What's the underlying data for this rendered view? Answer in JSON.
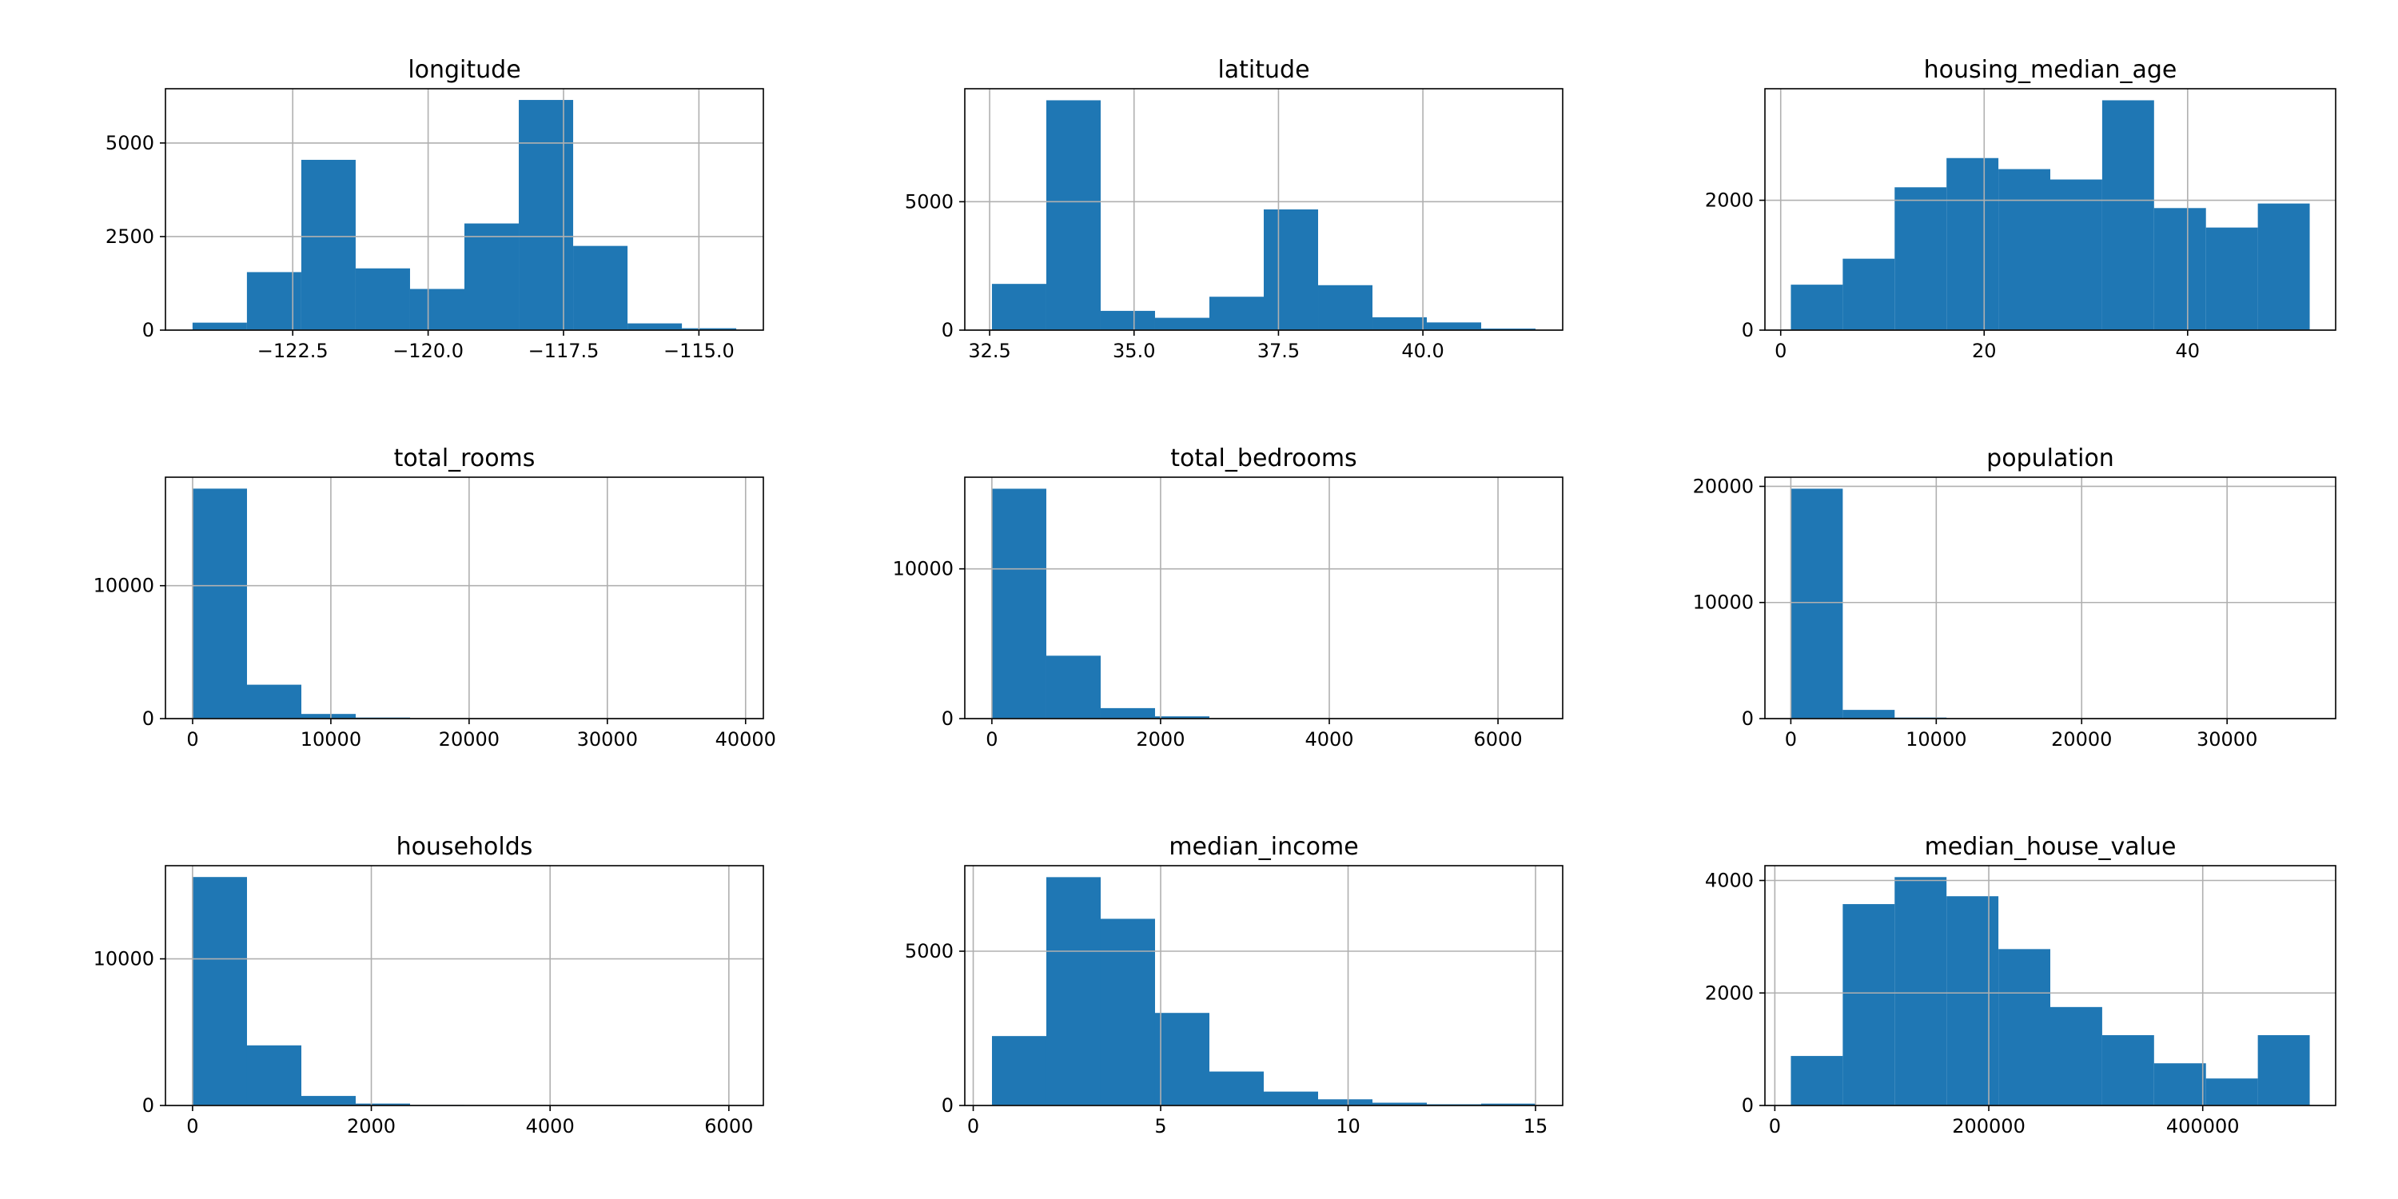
{
  "chart_data": [
    {
      "type": "histogram",
      "title": "longitude",
      "bins": [
        -124.35,
        -123.346,
        -122.342,
        -121.338,
        -120.334,
        -119.33,
        -118.326,
        -117.322,
        -116.318,
        -115.314,
        -114.31
      ],
      "values": [
        200,
        1550,
        4550,
        1650,
        1100,
        2850,
        6150,
        2250,
        180,
        50
      ],
      "color": "#1f77b4",
      "xlim": [
        -124.85,
        -113.81
      ],
      "ylim": [
        0,
        6450
      ],
      "xticks": [
        {
          "value": -122.5,
          "label": "−122.5"
        },
        {
          "value": -120,
          "label": "−120.0"
        },
        {
          "value": -117.5,
          "label": "−117.5"
        },
        {
          "value": -115,
          "label": "−115.0"
        }
      ],
      "yticks": [
        0,
        2500,
        5000
      ],
      "grid": true
    },
    {
      "type": "histogram",
      "title": "latitude",
      "bins": [
        32.54,
        33.481,
        34.422,
        35.363,
        36.304,
        37.245,
        38.186,
        39.127,
        40.068,
        41.009,
        41.95
      ],
      "values": [
        1800,
        8950,
        750,
        480,
        1300,
        4700,
        1750,
        500,
        300,
        60
      ],
      "color": "#1f77b4",
      "xlim": [
        32.07,
        42.42
      ],
      "ylim": [
        0,
        9400
      ],
      "xticks": [
        32.5,
        {
          "value": 35,
          "label": "35.0"
        },
        37.5,
        {
          "value": 40,
          "label": "40.0"
        }
      ],
      "yticks": [
        0,
        5000
      ],
      "grid": true
    },
    {
      "type": "histogram",
      "title": "housing_median_age",
      "bins": [
        1,
        6.1,
        11.2,
        16.3,
        21.4,
        26.5,
        31.6,
        36.7,
        41.8,
        46.9,
        52
      ],
      "values": [
        700,
        1100,
        2200,
        2650,
        2480,
        2320,
        3540,
        1880,
        1580,
        1950
      ],
      "color": "#1f77b4",
      "xlim": [
        -1.55,
        54.55
      ],
      "ylim": [
        0,
        3718
      ],
      "xticks": [
        0,
        20,
        40
      ],
      "yticks": [
        0,
        2000
      ],
      "grid": true
    },
    {
      "type": "histogram",
      "title": "total_rooms",
      "bins": [
        2,
        3933.8,
        7865.6,
        11797.4,
        15729.2,
        19661,
        23592.8,
        27524.6,
        31456.4,
        35388.2,
        39320
      ],
      "values": [
        17300,
        2550,
        350,
        80,
        20,
        10,
        5,
        3,
        1,
        2
      ],
      "color": "#1f77b4",
      "xlim": [
        -1964,
        41286
      ],
      "ylim": [
        0,
        18160
      ],
      "xticks": [
        0,
        10000,
        20000,
        30000,
        40000
      ],
      "yticks": [
        0,
        10000
      ],
      "grid": true
    },
    {
      "type": "histogram",
      "title": "total_bedrooms",
      "bins": [
        1,
        645.4,
        1289.8,
        1934.2,
        2578.6,
        3223,
        3867.4,
        4511.8,
        5156.2,
        5800.6,
        6445
      ],
      "values": [
        15350,
        4200,
        700,
        150,
        30,
        15,
        5,
        3,
        1,
        2
      ],
      "color": "#1f77b4",
      "xlim": [
        -321,
        6767
      ],
      "ylim": [
        0,
        16120
      ],
      "xticks": [
        0,
        2000,
        4000,
        6000
      ],
      "yticks": [
        0,
        10000
      ],
      "grid": true
    },
    {
      "type": "histogram",
      "title": "population",
      "bins": [
        3,
        3570.9,
        7138.8,
        10706.7,
        14274.6,
        17842.5,
        21410.4,
        24978.3,
        28546.2,
        32114.1,
        35682
      ],
      "values": [
        19800,
        750,
        90,
        20,
        6,
        2,
        1,
        0,
        0,
        1
      ],
      "color": "#1f77b4",
      "xlim": [
        -1781,
        37466
      ],
      "ylim": [
        0,
        20790
      ],
      "xticks": [
        0,
        10000,
        20000,
        30000
      ],
      "yticks": [
        0,
        10000,
        20000
      ],
      "grid": true
    },
    {
      "type": "histogram",
      "title": "households",
      "bins": [
        1,
        609.1,
        1217.2,
        1825.3,
        2433.4,
        3041.5,
        3649.6,
        4257.7,
        4865.8,
        5473.9,
        6082
      ],
      "values": [
        15580,
        4100,
        650,
        130,
        35,
        15,
        5,
        3,
        1,
        2
      ],
      "color": "#1f77b4",
      "xlim": [
        -303,
        6386
      ],
      "ylim": [
        0,
        16354
      ],
      "xticks": [
        0,
        2000,
        4000,
        6000
      ],
      "yticks": [
        0,
        10000
      ],
      "grid": true
    },
    {
      "type": "histogram",
      "title": "median_income",
      "bins": [
        0.4999,
        1.9499,
        3.3999,
        4.8499,
        6.2999,
        7.7499,
        9.1999,
        10.6499,
        12.0999,
        13.5499,
        15.0001
      ],
      "values": [
        2250,
        7400,
        6050,
        3000,
        1100,
        450,
        200,
        90,
        40,
        60
      ],
      "color": "#1f77b4",
      "xlim": [
        -0.225,
        15.725
      ],
      "ylim": [
        0,
        7772
      ],
      "xticks": [
        0,
        5,
        10,
        15
      ],
      "yticks": [
        0,
        5000
      ],
      "grid": true
    },
    {
      "type": "histogram",
      "title": "median_house_value",
      "bins": [
        14999,
        63499,
        111999,
        160500,
        209000,
        257500,
        306000,
        354500,
        403000,
        451500,
        500001
      ],
      "values": [
        880,
        3580,
        4060,
        3720,
        2780,
        1750,
        1250,
        750,
        480,
        1250
      ],
      "color": "#1f77b4",
      "xlim": [
        -9250,
        524250
      ],
      "ylim": [
        0,
        4263
      ],
      "xticks": [
        0,
        200000,
        400000
      ],
      "yticks": [
        0,
        2000,
        4000
      ],
      "grid": true
    }
  ]
}
